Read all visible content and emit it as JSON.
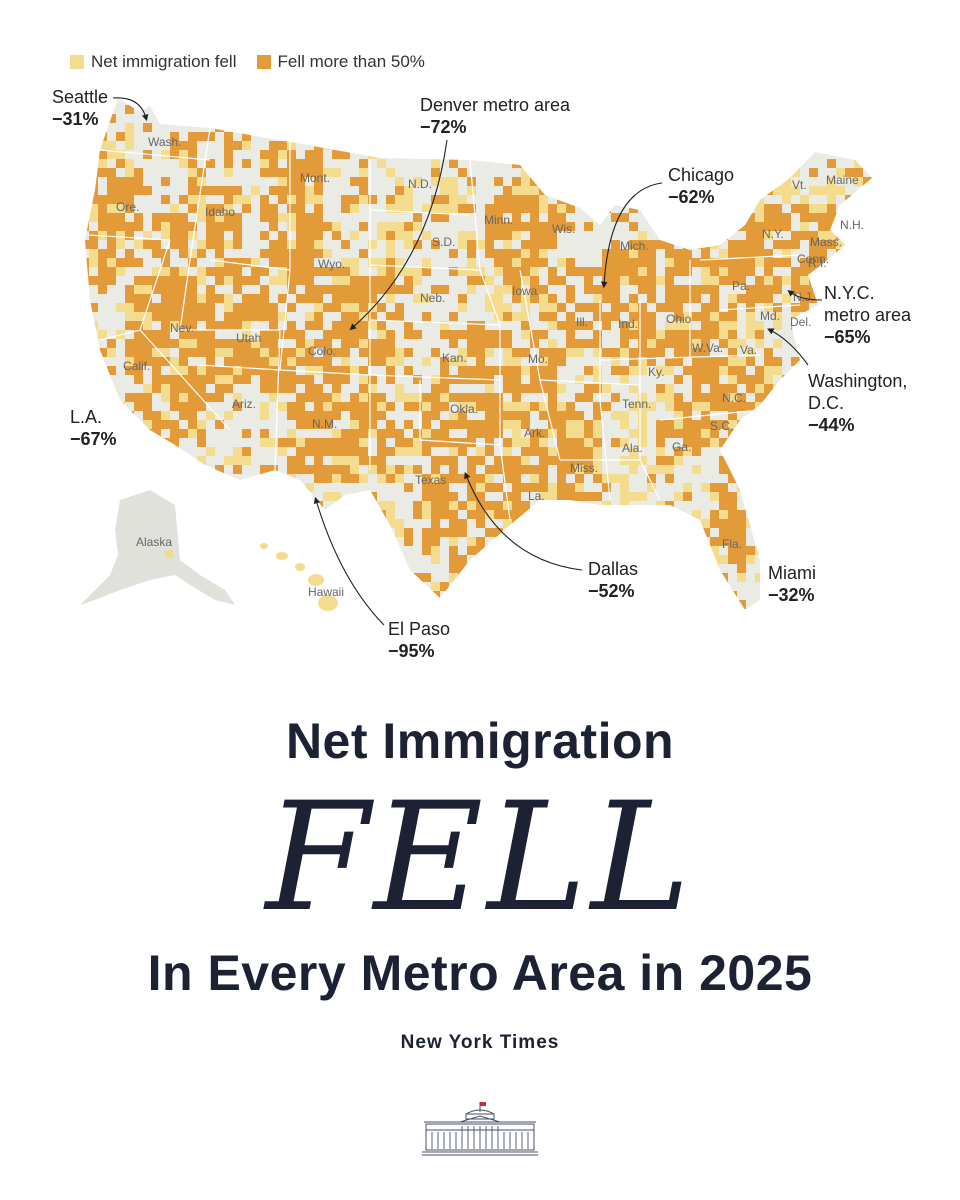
{
  "legend": {
    "fell": {
      "label": "Net immigration fell",
      "color": "#f4dc8f"
    },
    "fell_50": {
      "label": "Fell more than 50%",
      "color": "#e39a38"
    }
  },
  "colors": {
    "land": "#ebebe6",
    "border": "#ffffff"
  },
  "annotations": {
    "seattle": {
      "name": "Seattle",
      "value": "−31%"
    },
    "denver": {
      "name": "Denver metro area",
      "value": "−72%"
    },
    "chicago": {
      "name": "Chicago",
      "value": "−62%"
    },
    "nyc": {
      "name1": "N.Y.C.",
      "name2": "metro area",
      "value": "−65%"
    },
    "dc": {
      "name1": "Washington,",
      "name2": "D.C.",
      "value": "−44%"
    },
    "la": {
      "name": "L.A.",
      "value": "−67%"
    },
    "el_paso": {
      "name": "El Paso",
      "value": "−95%"
    },
    "dallas": {
      "name": "Dallas",
      "value": "−52%"
    },
    "miami": {
      "name": "Miami",
      "value": "−32%"
    }
  },
  "state_labels": [
    "Wash.",
    "Ore.",
    "Calif.",
    "Idaho",
    "Nev.",
    "Mont.",
    "Wyo.",
    "Utah",
    "Ariz.",
    "Colo.",
    "N.M.",
    "N.D.",
    "S.D.",
    "Neb.",
    "Kan.",
    "Okla.",
    "Texas",
    "Minn.",
    "Iowa",
    "Mo.",
    "Ark.",
    "La.",
    "Wis.",
    "Ill.",
    "Mich.",
    "Ind.",
    "Ohio",
    "Ky.",
    "Tenn.",
    "Miss.",
    "Ala.",
    "Ga.",
    "Fla.",
    "S.C.",
    "N.C.",
    "Va.",
    "W.Va.",
    "Pa.",
    "N.Y.",
    "Md.",
    "Del.",
    "N.J.",
    "Conn.",
    "R.I.",
    "Mass.",
    "N.H.",
    "Vt.",
    "Maine",
    "Alaska",
    "Hawaii"
  ],
  "headline": {
    "line1": "Net Immigration",
    "line2": "FELL",
    "line3": "In Every Metro Area in 2025"
  },
  "source": "New York Times",
  "logo_icon": "white-house-icon"
}
